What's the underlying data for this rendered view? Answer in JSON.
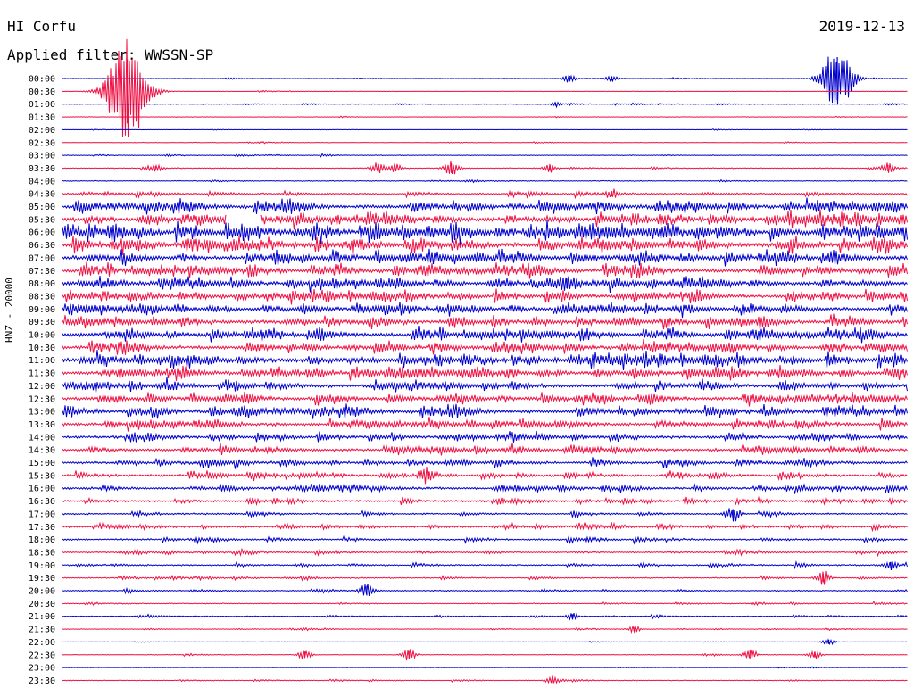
{
  "header": {
    "station": "HI Corfu",
    "date": "2019-12-13",
    "filter": "Applied filter: WWSSN-SP"
  },
  "axis_label": "HNZ - 20000",
  "colors": {
    "even_row": "#0000cc",
    "odd_row": "#ee1144",
    "text": "#000000"
  },
  "chart_data": {
    "type": "line",
    "subtype": "helicorder",
    "ylabel": "HNZ - 20000",
    "x_unit": "minutes within each 30-minute trace",
    "x_range": [
      0,
      30
    ],
    "row_labels": [
      "00:00",
      "00:30",
      "01:00",
      "01:30",
      "02:00",
      "02:30",
      "03:00",
      "03:30",
      "04:00",
      "04:30",
      "05:00",
      "05:30",
      "06:00",
      "06:30",
      "07:00",
      "07:30",
      "08:00",
      "08:30",
      "09:00",
      "09:30",
      "10:00",
      "10:30",
      "11:00",
      "11:30",
      "12:00",
      "12:30",
      "13:00",
      "13:30",
      "14:00",
      "14:30",
      "15:00",
      "15:30",
      "16:00",
      "16:30",
      "17:00",
      "17:30",
      "18:00",
      "18:30",
      "19:00",
      "19:30",
      "20:00",
      "20:30",
      "21:00",
      "21:30",
      "22:00",
      "22:30",
      "23:00",
      "23:30"
    ],
    "noise_level": [
      0.2,
      0.2,
      0.3,
      0.2,
      0.15,
      0.2,
      0.3,
      0.4,
      0.4,
      0.7,
      1.6,
      1.8,
      2.2,
      2.0,
      1.8,
      1.6,
      1.6,
      1.5,
      1.5,
      1.6,
      1.6,
      1.5,
      1.8,
      1.6,
      1.5,
      1.4,
      1.5,
      1.3,
      1.1,
      1.2,
      1.1,
      1.0,
      1.0,
      0.8,
      0.7,
      0.8,
      0.7,
      0.6,
      0.6,
      0.5,
      0.5,
      0.4,
      0.4,
      0.3,
      0.15,
      0.3,
      0.2,
      0.3
    ],
    "events": [
      {
        "row": 1,
        "minute": 2.3,
        "amplitude": 60
      },
      {
        "row": 0,
        "minute": 27.5,
        "amplitude": 40
      },
      {
        "row": 0,
        "minute": 18.0,
        "amplitude": 5
      },
      {
        "row": 0,
        "minute": 19.5,
        "amplitude": 4
      },
      {
        "row": 2,
        "minute": 17.5,
        "amplitude": 3
      },
      {
        "row": 7,
        "minute": 3.3,
        "amplitude": 4
      },
      {
        "row": 7,
        "minute": 11.2,
        "amplitude": 7
      },
      {
        "row": 7,
        "minute": 11.8,
        "amplitude": 5
      },
      {
        "row": 7,
        "minute": 13.8,
        "amplitude": 9
      },
      {
        "row": 7,
        "minute": 17.3,
        "amplitude": 5
      },
      {
        "row": 7,
        "minute": 29.3,
        "amplitude": 6
      },
      {
        "row": 9,
        "minute": 19.5,
        "amplitude": 5
      },
      {
        "row": 16,
        "minute": 17.9,
        "amplitude": 9
      },
      {
        "row": 38,
        "minute": 29.4,
        "amplitude": 6
      },
      {
        "row": 39,
        "minute": 27.0,
        "amplitude": 8
      },
      {
        "row": 40,
        "minute": 10.8,
        "amplitude": 9
      },
      {
        "row": 34,
        "minute": 23.8,
        "amplitude": 9
      },
      {
        "row": 44,
        "minute": 27.2,
        "amplitude": 4
      },
      {
        "row": 45,
        "minute": 8.6,
        "amplitude": 6
      },
      {
        "row": 45,
        "minute": 12.3,
        "amplitude": 7
      },
      {
        "row": 45,
        "minute": 24.4,
        "amplitude": 7
      },
      {
        "row": 45,
        "minute": 26.7,
        "amplitude": 5
      },
      {
        "row": 47,
        "minute": 17.4,
        "amplitude": 5
      },
      {
        "row": 31,
        "minute": 13.0,
        "amplitude": 7
      },
      {
        "row": 42,
        "minute": 18.1,
        "amplitude": 4
      },
      {
        "row": 43,
        "minute": 20.3,
        "amplitude": 4
      }
    ],
    "gaps": [
      {
        "row": 11,
        "from_minute": 5.8,
        "to_minute": 7.0
      }
    ],
    "grid": false
  }
}
